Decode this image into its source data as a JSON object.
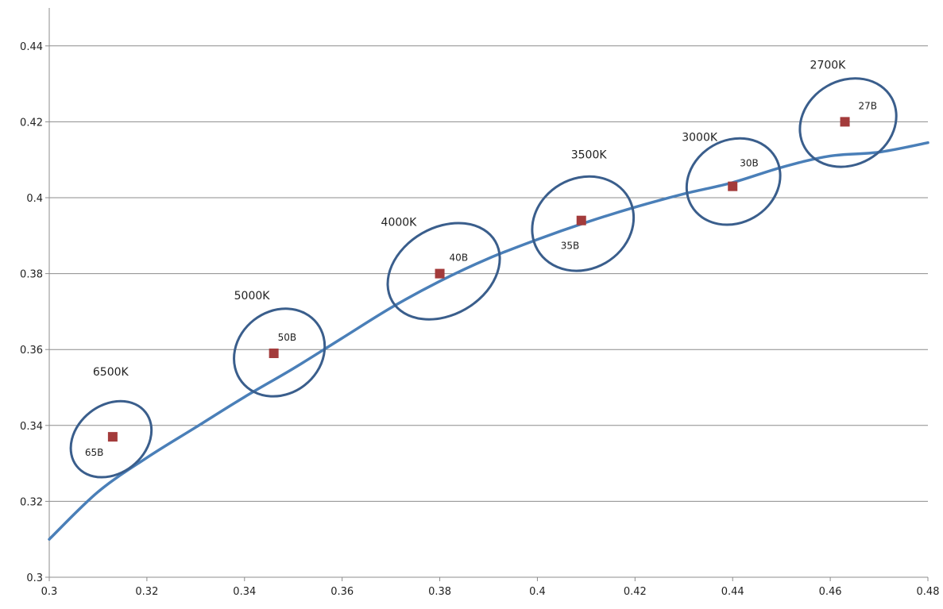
{
  "chart_data": {
    "type": "scatter",
    "title": "",
    "xlabel": "",
    "ylabel": "",
    "xlim": [
      0.3,
      0.48
    ],
    "ylim": [
      0.3,
      0.45
    ],
    "x_ticks": [
      "0.3",
      "0.32",
      "0.34",
      "0.36",
      "0.38",
      "0.4",
      "0.42",
      "0.44",
      "0.46",
      "0.48"
    ],
    "y_ticks": [
      "0.3",
      "0.32",
      "0.34",
      "0.36",
      "0.38",
      "0.4",
      "0.42",
      "0.44"
    ],
    "grid": "horizontal",
    "colors": {
      "curve": "#4a7fb8",
      "ellipse": "#3a5e8c",
      "marker": "#a33b3b",
      "grid": "#8c8c8c"
    },
    "curve": {
      "x": [
        0.3,
        0.31,
        0.32,
        0.33,
        0.34,
        0.35,
        0.36,
        0.37,
        0.38,
        0.39,
        0.4,
        0.41,
        0.42,
        0.43,
        0.44,
        0.45,
        0.46,
        0.47,
        0.48
      ],
      "y": [
        0.31,
        0.3225,
        0.3315,
        0.3395,
        0.3475,
        0.355,
        0.363,
        0.371,
        0.378,
        0.384,
        0.389,
        0.3935,
        0.3975,
        0.401,
        0.404,
        0.408,
        0.411,
        0.412,
        0.4145
      ]
    },
    "points": [
      {
        "x": 0.313,
        "y": 0.337,
        "label": "65B",
        "cct": "6500K"
      },
      {
        "x": 0.346,
        "y": 0.359,
        "label": "50B",
        "cct": "5000K"
      },
      {
        "x": 0.38,
        "y": 0.38,
        "label": "40B",
        "cct": "4000K"
      },
      {
        "x": 0.409,
        "y": 0.394,
        "label": "35B",
        "cct": "3500K"
      },
      {
        "x": 0.44,
        "y": 0.403,
        "label": "30B",
        "cct": "3000K"
      },
      {
        "x": 0.463,
        "y": 0.42,
        "label": "27B",
        "cct": "2700K"
      }
    ]
  }
}
